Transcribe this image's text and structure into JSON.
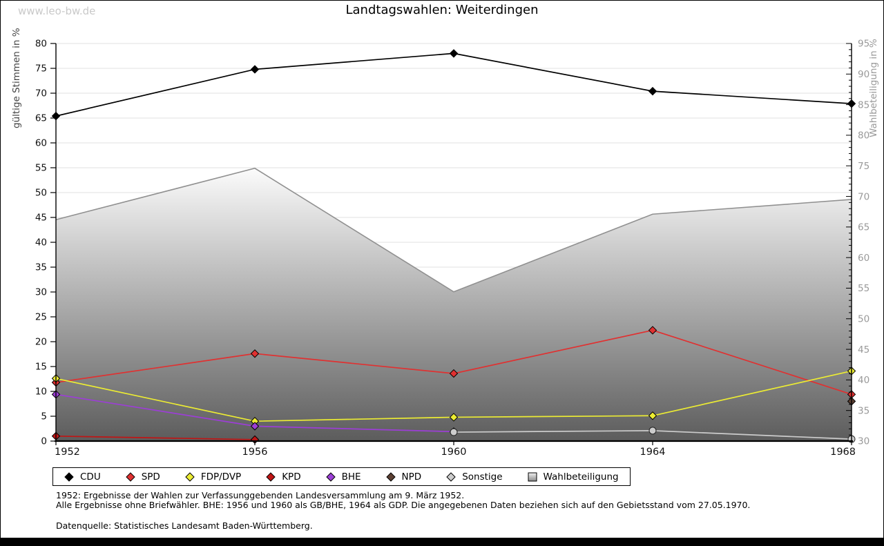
{
  "page": {
    "watermark": "www.leo-bw.de",
    "title": "Landtagswahlen: Weiterdingen"
  },
  "chart_data": {
    "type": "line",
    "title": "Landtagswahlen: Weiterdingen",
    "x_categories": [
      1952,
      1956,
      1960,
      1964,
      1968
    ],
    "left_axis": {
      "label": "gültige Stimmen in %",
      "min": 0,
      "max": 80,
      "tick_step": 5
    },
    "right_axis": {
      "label": "Wahlbeteiligung in %",
      "min": 30,
      "max": 95,
      "tick_step": 5,
      "minor_tick_step": 1
    },
    "grid": true,
    "legend_position": "bottom",
    "series": [
      {
        "name": "CDU",
        "color": "#000000",
        "marker": "diamond",
        "axis": "left",
        "points": [
          [
            1952,
            65.4
          ],
          [
            1956,
            74.8
          ],
          [
            1960,
            78.0
          ],
          [
            1964,
            70.4
          ],
          [
            1968,
            67.9
          ]
        ]
      },
      {
        "name": "SPD",
        "color": "#e03131",
        "marker": "diamond",
        "axis": "left",
        "points": [
          [
            1952,
            11.8
          ],
          [
            1956,
            17.6
          ],
          [
            1960,
            13.6
          ],
          [
            1964,
            22.3
          ],
          [
            1968,
            9.4
          ]
        ]
      },
      {
        "name": "FDP/DVP",
        "color": "#ecec33",
        "marker": "diamond",
        "axis": "left",
        "points": [
          [
            1952,
            12.6
          ],
          [
            1956,
            4.0
          ],
          [
            1960,
            4.8
          ],
          [
            1964,
            5.1
          ],
          [
            1968,
            14.1
          ]
        ]
      },
      {
        "name": "KPD",
        "color": "#c01515",
        "marker": "diamond",
        "axis": "left",
        "points": [
          [
            1952,
            1.0
          ],
          [
            1956,
            0.3
          ]
        ]
      },
      {
        "name": "BHE",
        "color": "#9c3ed6",
        "marker": "diamond",
        "axis": "left",
        "points": [
          [
            1952,
            9.4
          ],
          [
            1956,
            3.0
          ],
          [
            1960,
            1.9
          ]
        ]
      },
      {
        "name": "NPD",
        "color": "#5c4033",
        "marker": "diamond",
        "axis": "left",
        "points": [
          [
            1968,
            8.0
          ]
        ]
      },
      {
        "name": "Sonstige",
        "color": "#cccccc",
        "marker": "circle",
        "axis": "left",
        "points": [
          [
            1960,
            1.8
          ],
          [
            1964,
            2.1
          ],
          [
            1968,
            0.4
          ]
        ]
      }
    ],
    "area_series": {
      "name": "Wahlbeteiligung",
      "axis": "right",
      "stroke": "#909090",
      "fill_top": "#fbfbfb",
      "fill_bottom": "#5c5c5c",
      "points": [
        [
          1952,
          66.2
        ],
        [
          1956,
          74.6
        ],
        [
          1960,
          54.4
        ],
        [
          1964,
          67.1
        ],
        [
          1968,
          69.5
        ]
      ]
    }
  },
  "footer": {
    "line1": "1952: Ergebnisse der Wahlen zur Verfassunggebenden Landesversammlung am 9. März 1952.",
    "line2": "Alle Ergebnisse ohne Briefwähler. BHE: 1956 und 1960 als GB/BHE, 1964 als GDP. Die angegebenen Daten beziehen sich auf den Gebietsstand vom 27.05.1970.",
    "line3": "Datenquelle: Statistisches Landesamt Baden-Württemberg."
  }
}
